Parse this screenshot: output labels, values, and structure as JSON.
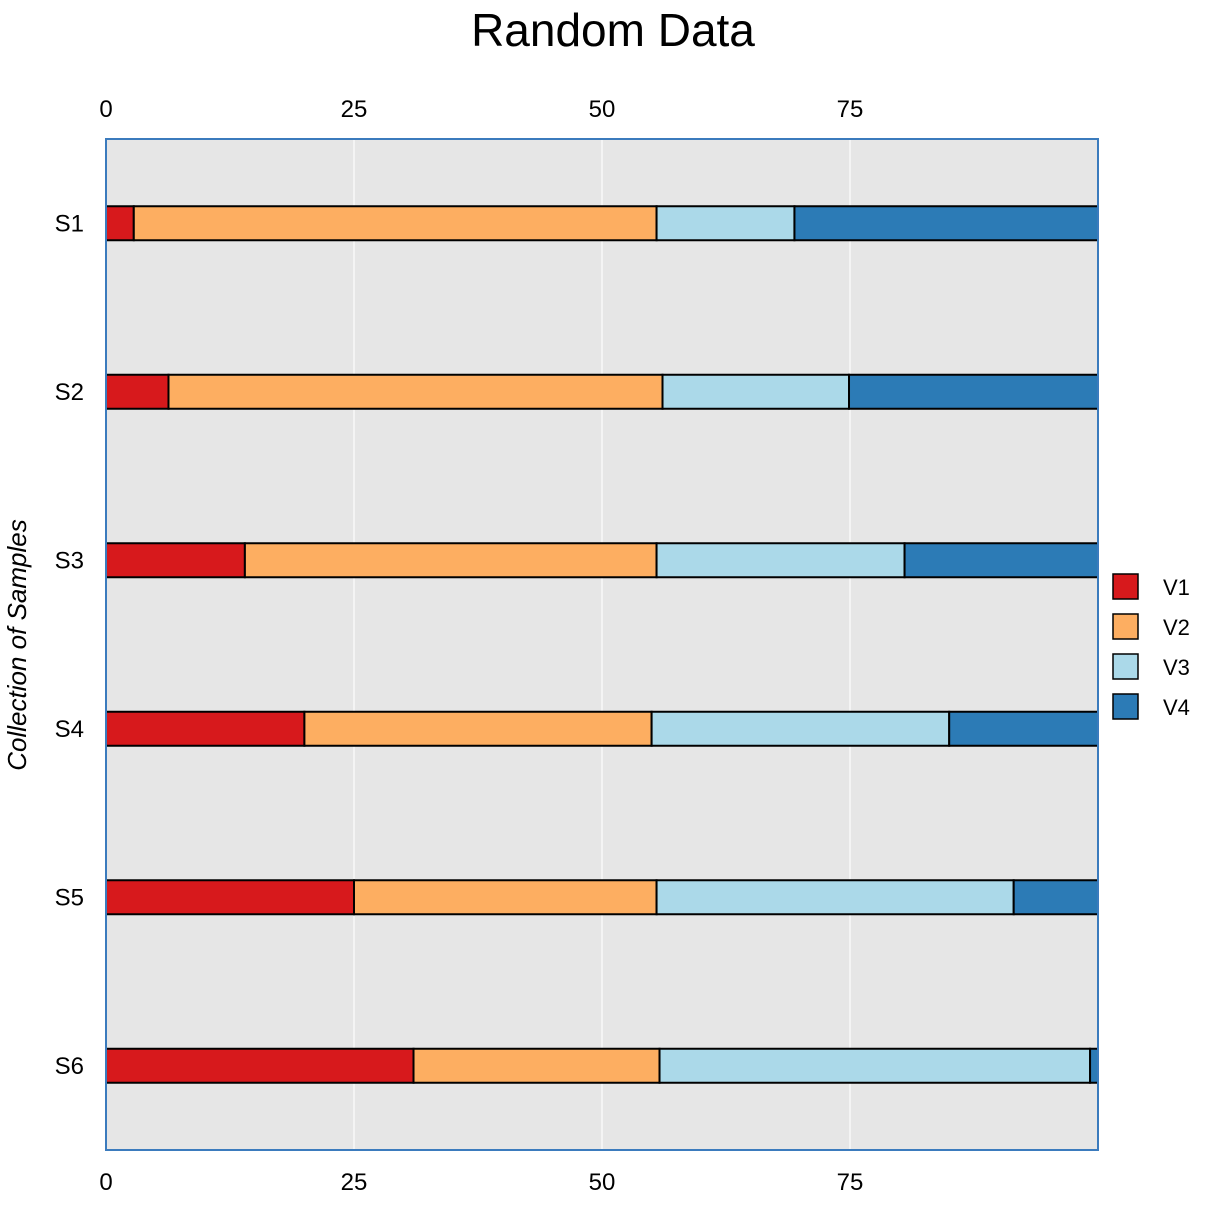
{
  "chart_data": {
    "type": "bar",
    "orientation": "horizontal",
    "stacked": true,
    "title": "Random Data",
    "xlabel": "",
    "ylabel": "Collection of Samples",
    "xlim": [
      0,
      100
    ],
    "xticks": [
      "0",
      "25",
      "50",
      "75"
    ],
    "xtick_values": [
      0,
      25,
      50,
      75
    ],
    "x_axis_position": "top and bottom",
    "categories": [
      "S1",
      "S2",
      "S3",
      "S4",
      "S5",
      "S6"
    ],
    "series": [
      {
        "name": "V1",
        "color": "#d7191c",
        "values": [
          2.8,
          6.3,
          14.0,
          20.0,
          25.0,
          31.0
        ]
      },
      {
        "name": "V2",
        "color": "#fdae61",
        "values": [
          52.7,
          49.8,
          41.5,
          35.0,
          30.5,
          24.8
        ]
      },
      {
        "name": "V3",
        "color": "#abd9e9",
        "values": [
          13.9,
          18.8,
          25.0,
          30.0,
          36.0,
          43.4
        ]
      },
      {
        "name": "V4",
        "color": "#2c7bb6",
        "values": [
          30.6,
          25.1,
          19.5,
          15.0,
          8.5,
          0.8
        ]
      }
    ],
    "grid": true,
    "background": "#e6e6e6",
    "panel_border": "#3b7bbd",
    "legend": "right"
  }
}
